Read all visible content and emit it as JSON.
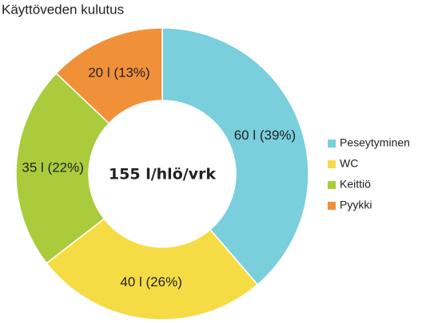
{
  "chart_data": {
    "type": "donut",
    "title": "Käyttöveden kulutus",
    "center_label": "155 l/hlö/vrk",
    "categories": [
      "Peseytyminen",
      "WC",
      "Keittiö",
      "Pyykki"
    ],
    "values": [
      60,
      40,
      35,
      20
    ],
    "value_labels": [
      "60 l (39%)",
      "40 l (26%)",
      "35 l (22%)",
      "20 l (13%)"
    ],
    "colors": [
      "#79cfdc",
      "#f5dc45",
      "#aacb3c",
      "#f0913a"
    ],
    "legend": "right"
  }
}
